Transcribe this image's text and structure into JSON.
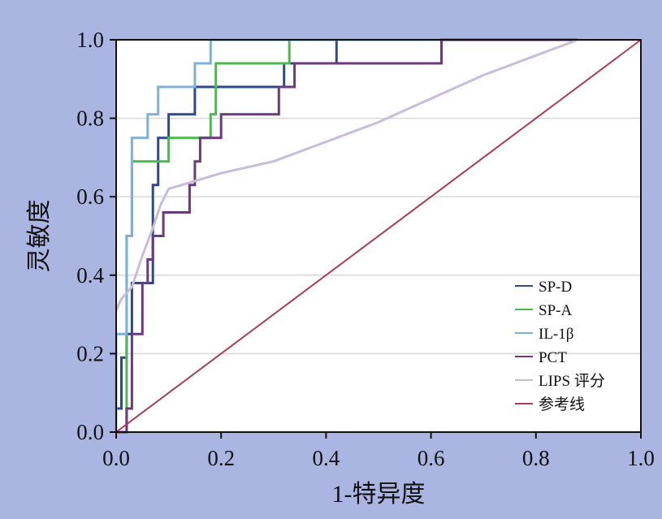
{
  "chart_data": {
    "type": "line",
    "title": "",
    "xlabel": "1-特异度",
    "ylabel": "灵敏度",
    "xlim": [
      0,
      1
    ],
    "ylim": [
      0,
      1
    ],
    "x_ticks": [
      "0.0",
      "0.2",
      "0.4",
      "0.6",
      "0.8",
      "1.0"
    ],
    "y_ticks": [
      "0.0",
      "0.2",
      "0.4",
      "0.6",
      "0.8",
      "1.0"
    ],
    "grid": "horizontal",
    "legend_position": "bottom-right",
    "series": [
      {
        "name": "SP-D",
        "color": "#2e4a8c",
        "points": [
          [
            0,
            0
          ],
          [
            0,
            0.06
          ],
          [
            0.01,
            0.06
          ],
          [
            0.01,
            0.19
          ],
          [
            0.02,
            0.19
          ],
          [
            0.02,
            0.25
          ],
          [
            0.03,
            0.25
          ],
          [
            0.03,
            0.38
          ],
          [
            0.05,
            0.38
          ],
          [
            0.05,
            0.38
          ],
          [
            0.07,
            0.38
          ],
          [
            0.07,
            0.44
          ],
          [
            0.07,
            0.5
          ],
          [
            0.07,
            0.5
          ],
          [
            0.07,
            0.56
          ],
          [
            0.07,
            0.63
          ],
          [
            0.08,
            0.63
          ],
          [
            0.08,
            0.69
          ],
          [
            0.08,
            0.75
          ],
          [
            0.1,
            0.75
          ],
          [
            0.1,
            0.81
          ],
          [
            0.15,
            0.81
          ],
          [
            0.15,
            0.88
          ],
          [
            0.32,
            0.88
          ],
          [
            0.32,
            0.94
          ],
          [
            0.42,
            0.94
          ],
          [
            0.42,
            1.0
          ],
          [
            1.0,
            1.0
          ]
        ]
      },
      {
        "name": "SP-A",
        "color": "#4db84d",
        "points": [
          [
            0,
            0
          ],
          [
            0.02,
            0
          ],
          [
            0.02,
            0.06
          ],
          [
            0.02,
            0.5
          ],
          [
            0.03,
            0.5
          ],
          [
            0.03,
            0.69
          ],
          [
            0.1,
            0.69
          ],
          [
            0.1,
            0.75
          ],
          [
            0.18,
            0.75
          ],
          [
            0.18,
            0.81
          ],
          [
            0.19,
            0.81
          ],
          [
            0.19,
            0.88
          ],
          [
            0.19,
            0.94
          ],
          [
            0.33,
            0.94
          ],
          [
            0.33,
            1.0
          ],
          [
            1.0,
            1.0
          ]
        ]
      },
      {
        "name": "IL-1β",
        "color": "#7fb0d6",
        "points": [
          [
            0,
            0
          ],
          [
            0,
            0.25
          ],
          [
            0.02,
            0.25
          ],
          [
            0.02,
            0.5
          ],
          [
            0.03,
            0.5
          ],
          [
            0.03,
            0.75
          ],
          [
            0.06,
            0.75
          ],
          [
            0.06,
            0.81
          ],
          [
            0.08,
            0.81
          ],
          [
            0.08,
            0.88
          ],
          [
            0.15,
            0.88
          ],
          [
            0.15,
            0.94
          ],
          [
            0.18,
            0.94
          ],
          [
            0.18,
            1.0
          ],
          [
            1.0,
            1.0
          ]
        ]
      },
      {
        "name": "PCT",
        "color": "#6b3a7d",
        "points": [
          [
            0,
            0
          ],
          [
            0.02,
            0
          ],
          [
            0.02,
            0.06
          ],
          [
            0.03,
            0.06
          ],
          [
            0.03,
            0.25
          ],
          [
            0.05,
            0.25
          ],
          [
            0.05,
            0.38
          ],
          [
            0.06,
            0.38
          ],
          [
            0.06,
            0.44
          ],
          [
            0.07,
            0.44
          ],
          [
            0.07,
            0.5
          ],
          [
            0.09,
            0.5
          ],
          [
            0.09,
            0.56
          ],
          [
            0.14,
            0.56
          ],
          [
            0.14,
            0.63
          ],
          [
            0.15,
            0.63
          ],
          [
            0.15,
            0.69
          ],
          [
            0.16,
            0.69
          ],
          [
            0.16,
            0.75
          ],
          [
            0.2,
            0.75
          ],
          [
            0.2,
            0.81
          ],
          [
            0.31,
            0.81
          ],
          [
            0.31,
            0.88
          ],
          [
            0.34,
            0.88
          ],
          [
            0.34,
            0.94
          ],
          [
            0.62,
            0.94
          ],
          [
            0.62,
            1.0
          ],
          [
            1.0,
            1.0
          ]
        ]
      },
      {
        "name": "LIPS 评分",
        "color": "#c9bcd9",
        "points": [
          [
            0,
            0.31
          ],
          [
            0.01,
            0.34
          ],
          [
            0.03,
            0.37
          ],
          [
            0.05,
            0.45
          ],
          [
            0.07,
            0.52
          ],
          [
            0.085,
            0.58
          ],
          [
            0.1,
            0.62
          ],
          [
            0.15,
            0.64
          ],
          [
            0.2,
            0.66
          ],
          [
            0.3,
            0.69
          ],
          [
            0.4,
            0.74
          ],
          [
            0.5,
            0.79
          ],
          [
            0.6,
            0.85
          ],
          [
            0.7,
            0.91
          ],
          [
            0.8,
            0.96
          ],
          [
            0.88,
            1.0
          ],
          [
            1.0,
            1.0
          ]
        ]
      },
      {
        "name": "参考线",
        "color": "#b03a55",
        "points": [
          [
            0,
            0
          ],
          [
            1,
            1
          ]
        ]
      }
    ]
  }
}
